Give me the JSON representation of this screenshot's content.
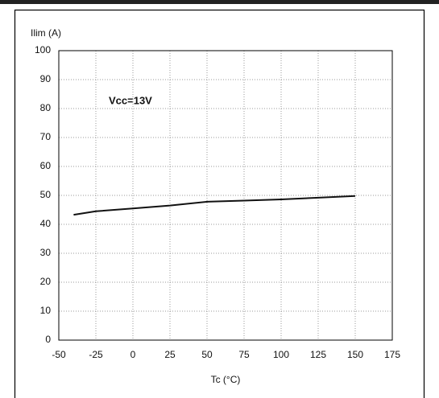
{
  "chart_data": {
    "type": "line",
    "y_label": "Ilim (A)",
    "x_label": "Tc (°C)",
    "annotation": "Vcc=13V",
    "x": [
      -40,
      -25,
      0,
      25,
      50,
      75,
      100,
      125,
      150
    ],
    "series": [
      {
        "color": "#111111",
        "values": [
          43.3,
          44.5,
          45.5,
          46.5,
          47.8,
          48.2,
          48.6,
          49.2,
          49.8
        ]
      }
    ],
    "xlim": [
      -50,
      175
    ],
    "xticks": [
      -50,
      -25,
      0,
      25,
      50,
      75,
      100,
      125,
      150,
      175
    ],
    "ylim": [
      0,
      100
    ],
    "yticks": [
      0,
      10,
      20,
      30,
      40,
      50,
      60,
      70,
      80,
      90,
      100
    ],
    "grid": true
  }
}
